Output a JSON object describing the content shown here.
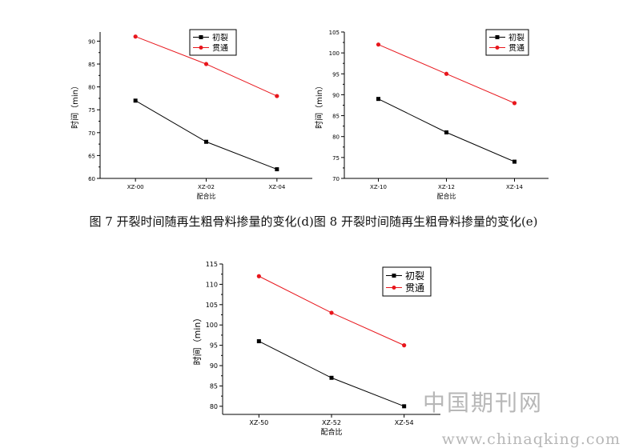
{
  "captions": {
    "fig7": "图 7  开裂时间随再生粗骨料掺量的变化(d)",
    "fig8": "图 8  开裂时间随再生粗骨料掺量的变化(e)"
  },
  "watermark": {
    "cn": "中国期刊网",
    "url": "www.chinaqking.com"
  },
  "colors": {
    "initial_crack": "#000000",
    "through_crack": "#e8161c"
  },
  "chart_data": [
    {
      "type": "line",
      "xlabel": "配合比",
      "ylabel": "时间（min）",
      "categories": [
        "XZ-00",
        "XZ-02",
        "XZ-04"
      ],
      "ylim": [
        60,
        92
      ],
      "yticks": [
        60,
        65,
        70,
        75,
        80,
        85,
        90
      ],
      "legend_position": "top-right",
      "series": [
        {
          "name": "初裂",
          "values": [
            77,
            68,
            62
          ],
          "marker": "square"
        },
        {
          "name": "贯通",
          "values": [
            91,
            85,
            78
          ],
          "marker": "circle"
        }
      ]
    },
    {
      "type": "line",
      "xlabel": "配合比",
      "ylabel": "时间（min）",
      "categories": [
        "XZ-10",
        "XZ-12",
        "XZ-14"
      ],
      "ylim": [
        70,
        105
      ],
      "yticks": [
        70,
        75,
        80,
        85,
        90,
        95,
        100,
        105
      ],
      "legend_position": "top-right",
      "series": [
        {
          "name": "初裂",
          "values": [
            89,
            81,
            74
          ],
          "marker": "square"
        },
        {
          "name": "贯通",
          "values": [
            102,
            95,
            88
          ],
          "marker": "circle"
        }
      ]
    },
    {
      "type": "line",
      "xlabel": "配合比",
      "ylabel": "时间（min）",
      "categories": [
        "XZ-50",
        "XZ-52",
        "XZ-54"
      ],
      "ylim": [
        78,
        115
      ],
      "yticks": [
        80,
        85,
        90,
        95,
        100,
        105,
        110,
        115
      ],
      "legend_position": "top-right",
      "series": [
        {
          "name": "初裂",
          "values": [
            96,
            87,
            80
          ],
          "marker": "square"
        },
        {
          "name": "贯通",
          "values": [
            112,
            103,
            95
          ],
          "marker": "circle"
        }
      ]
    }
  ]
}
